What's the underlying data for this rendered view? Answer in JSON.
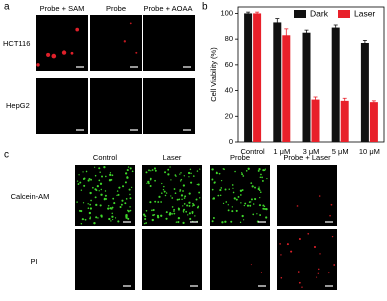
{
  "panel_labels": [
    "a",
    "b",
    "c"
  ],
  "panel_a": {
    "columns": [
      "Probe + SAM",
      "Probe",
      "Probe + AOAA"
    ],
    "rows": [
      "HCT116",
      "HepG2"
    ]
  },
  "panel_c": {
    "columns": [
      "Control",
      "Laser",
      "Probe",
      "Probe + Laser"
    ],
    "rows": [
      "Calcein-AM",
      "PI"
    ]
  },
  "chart_data": {
    "type": "bar",
    "ylabel": "Cell Viability (%)",
    "categories": [
      "Control",
      "1 μM",
      "3 μM",
      "5 μM",
      "10 μM"
    ],
    "series": [
      {
        "name": "Dark",
        "color": "#111111",
        "values": [
          100,
          93,
          85,
          89,
          77
        ],
        "errors": [
          1,
          3,
          2,
          2,
          2
        ]
      },
      {
        "name": "Laser",
        "color": "#e8202a",
        "values": [
          100,
          83,
          33,
          32,
          31
        ],
        "errors": [
          1,
          5,
          2,
          2,
          1
        ]
      }
    ],
    "ylim": [
      0,
      105
    ],
    "yticks": [
      0,
      20,
      40,
      60,
      80,
      100
    ],
    "legend": "top-right"
  }
}
